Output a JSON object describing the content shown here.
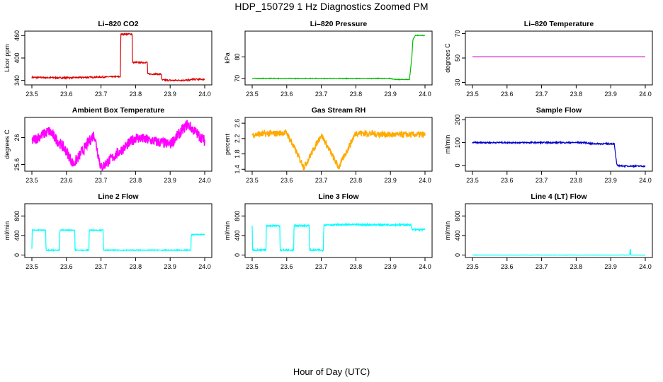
{
  "title": "HDP_150729  1 Hz Diagnostics Zoomed PM",
  "xlabel": "Hour of Day (UTC)",
  "chart_data": [
    {
      "type": "line",
      "title": "Li–820 CO2",
      "ylabel": "Licor ppm",
      "color": "#dd0000",
      "xlim": [
        23.5,
        24.0
      ],
      "xticks": [
        23.5,
        23.6,
        23.7,
        23.8,
        23.9,
        24.0
      ],
      "ylim": [
        328,
        472
      ],
      "yticks": [
        340,
        400,
        460
      ],
      "series": [
        {
          "x": [
            23.5,
            23.6,
            23.7,
            23.756,
            23.757,
            23.79,
            23.791,
            23.834,
            23.835,
            23.875,
            23.876,
            23.91,
            23.96,
            23.961,
            24.0
          ],
          "y": [
            348,
            347,
            349,
            350,
            464,
            464,
            388,
            388,
            357,
            357,
            341,
            340,
            341,
            343,
            343
          ]
        }
      ]
    },
    {
      "type": "line",
      "title": "Li–820 Pressure",
      "ylabel": "kPa",
      "color": "#00bb00",
      "xlim": [
        23.5,
        24.0
      ],
      "xticks": [
        23.5,
        23.6,
        23.7,
        23.8,
        23.9,
        24.0
      ],
      "ylim": [
        67,
        92
      ],
      "yticks": [
        70,
        80
      ],
      "series": [
        {
          "x": [
            23.5,
            23.7,
            23.9,
            23.915,
            23.955,
            23.962,
            23.965,
            23.972,
            24.0
          ],
          "y": [
            70.0,
            70.0,
            70.0,
            69.5,
            69.5,
            80,
            88,
            90,
            90
          ]
        }
      ]
    },
    {
      "type": "line",
      "title": "Li–820 Temperature",
      "ylabel": "degrees C",
      "color": "#cc00cc",
      "xlim": [
        23.5,
        24.0
      ],
      "xticks": [
        23.5,
        23.6,
        23.7,
        23.8,
        23.9,
        24.0
      ],
      "ylim": [
        28,
        72
      ],
      "yticks": [
        30,
        50,
        70
      ],
      "series": [
        {
          "x": [
            23.5,
            24.0
          ],
          "y": [
            51,
            51
          ]
        }
      ]
    },
    {
      "type": "line",
      "title": "Ambient Box Temperature",
      "ylabel": "degrees C",
      "color": "#ff00ff",
      "xlim": [
        23.5,
        24.0
      ],
      "xticks": [
        23.5,
        23.6,
        23.7,
        23.8,
        23.9,
        24.0
      ],
      "ylim": [
        25.5,
        26.3
      ],
      "yticks": [
        25.6,
        26.0
      ],
      "series": [
        {
          "x": [
            23.5,
            23.55,
            23.6,
            23.62,
            23.68,
            23.7,
            23.8,
            23.9,
            23.95,
            24.0
          ],
          "y": [
            25.95,
            26.1,
            25.8,
            25.6,
            26.05,
            25.55,
            26.0,
            25.9,
            26.2,
            25.95
          ]
        }
      ]
    },
    {
      "type": "line",
      "title": "Gas Stream RH",
      "ylabel": "percent",
      "color": "#ffaa00",
      "xlim": [
        23.5,
        24.0
      ],
      "xticks": [
        23.5,
        23.6,
        23.7,
        23.8,
        23.9,
        24.0
      ],
      "ylim": [
        1.35,
        2.75
      ],
      "yticks": [
        1.4,
        1.8,
        2.2,
        2.6
      ],
      "series": [
        {
          "x": [
            23.5,
            23.6,
            23.65,
            23.7,
            23.75,
            23.8,
            23.9,
            24.0
          ],
          "y": [
            2.3,
            2.35,
            1.45,
            2.3,
            1.45,
            2.35,
            2.3,
            2.3
          ]
        }
      ]
    },
    {
      "type": "line",
      "title": "Sample Flow",
      "ylabel": "ml/min",
      "color": "#0000cc",
      "xlim": [
        23.5,
        24.0
      ],
      "xticks": [
        23.5,
        23.6,
        23.7,
        23.8,
        23.9,
        24.0
      ],
      "ylim": [
        -25,
        210
      ],
      "yticks": [
        0,
        100,
        200
      ],
      "series": [
        {
          "x": [
            23.5,
            23.83,
            23.84,
            23.91,
            23.918,
            23.93,
            24.0
          ],
          "y": [
            100,
            100,
            95,
            95,
            0,
            -2,
            -3
          ]
        }
      ]
    },
    {
      "type": "line",
      "title": "Line 2 Flow",
      "ylabel": "ml/min",
      "color": "#00ffff",
      "xlim": [
        23.5,
        24.0
      ],
      "xticks": [
        23.5,
        23.6,
        23.7,
        23.8,
        23.9,
        24.0
      ],
      "ylim": [
        -50,
        1050
      ],
      "yticks": [
        0,
        400,
        800
      ],
      "series": [
        {
          "x": [
            23.5,
            23.501,
            23.54,
            23.541,
            23.58,
            23.581,
            23.624,
            23.625,
            23.665,
            23.666,
            23.706,
            23.707,
            23.96,
            23.961,
            24.0
          ],
          "y": [
            120,
            510,
            510,
            100,
            100,
            510,
            510,
            100,
            100,
            510,
            510,
            100,
            100,
            420,
            420
          ]
        }
      ]
    },
    {
      "type": "line",
      "title": "Line 3 Flow",
      "ylabel": "ml/min",
      "color": "#00ffff",
      "xlim": [
        23.5,
        24.0
      ],
      "xticks": [
        23.5,
        23.6,
        23.7,
        23.8,
        23.9,
        24.0
      ],
      "ylim": [
        -50,
        1050
      ],
      "yticks": [
        0,
        400,
        800
      ],
      "series": [
        {
          "x": [
            23.5,
            23.501,
            23.54,
            23.541,
            23.58,
            23.581,
            23.62,
            23.621,
            23.665,
            23.666,
            23.706,
            23.707,
            23.8,
            23.9,
            23.96,
            23.962,
            24.0
          ],
          "y": [
            600,
            100,
            100,
            600,
            600,
            100,
            100,
            600,
            600,
            100,
            100,
            620,
            620,
            620,
            620,
            520,
            520
          ]
        }
      ]
    },
    {
      "type": "line",
      "title": "Line 4 (LT) Flow",
      "ylabel": "ml/min",
      "color": "#00ffff",
      "xlim": [
        23.5,
        24.0
      ],
      "xticks": [
        23.5,
        23.6,
        23.7,
        23.8,
        23.9,
        24.0
      ],
      "ylim": [
        -50,
        1050
      ],
      "yticks": [
        0,
        400,
        800
      ],
      "series": [
        {
          "x": [
            23.5,
            23.955,
            23.956,
            23.957,
            23.958,
            24.0
          ],
          "y": [
            0,
            0,
            120,
            120,
            0,
            0
          ]
        }
      ]
    }
  ]
}
